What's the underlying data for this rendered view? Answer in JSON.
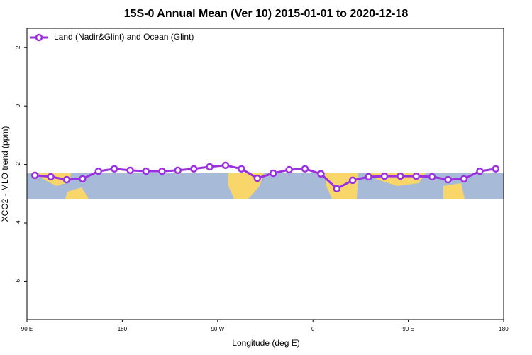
{
  "chart_data": {
    "type": "line",
    "title": "15S-0 Annual Mean (Ver 10)   2015-01-01 to 2020-12-18",
    "x_label": "Longitude (deg E)",
    "y_label": "XCO2 - MLO trend (ppm)",
    "x": [
      97.5,
      112.5,
      127.5,
      142.5,
      157.5,
      172.5,
      187.5,
      202.5,
      217.5,
      232.5,
      247.5,
      262.5,
      277.5,
      292.5,
      307.5,
      322.5,
      337.5,
      352.5,
      367.5,
      382.5,
      397.5,
      412.5,
      427.5,
      442.5,
      457.5,
      472.5,
      487.5,
      502.5,
      517.5,
      532.5
    ],
    "series": [
      {
        "name": "Land (Nadir&Glint) and Ocean (Glint)",
        "color": "#9b30e0",
        "values": [
          -2.37,
          -2.42,
          -2.52,
          -2.49,
          -2.23,
          -2.15,
          -2.2,
          -2.23,
          -2.23,
          -2.2,
          -2.15,
          -2.08,
          -2.03,
          -2.15,
          -2.47,
          -2.3,
          -2.18,
          -2.15,
          -2.32,
          -2.83,
          -2.54,
          -2.42,
          -2.4,
          -2.4,
          -2.4,
          -2.42,
          -2.52,
          -2.49,
          -2.23,
          -2.15
        ]
      }
    ],
    "xlim": [
      90,
      540
    ],
    "xticks": [
      {
        "value": 90,
        "label": "90 E"
      },
      {
        "value": 180,
        "label": "180"
      },
      {
        "value": 270,
        "label": "90 W"
      },
      {
        "value": 360,
        "label": "0"
      },
      {
        "value": 450,
        "label": "90 E"
      },
      {
        "value": 540,
        "label": "180"
      }
    ],
    "ylim": [
      -7.3,
      2.65
    ],
    "yticks": [
      2,
      0,
      -2,
      -4,
      -6
    ],
    "legend": "top-left"
  }
}
